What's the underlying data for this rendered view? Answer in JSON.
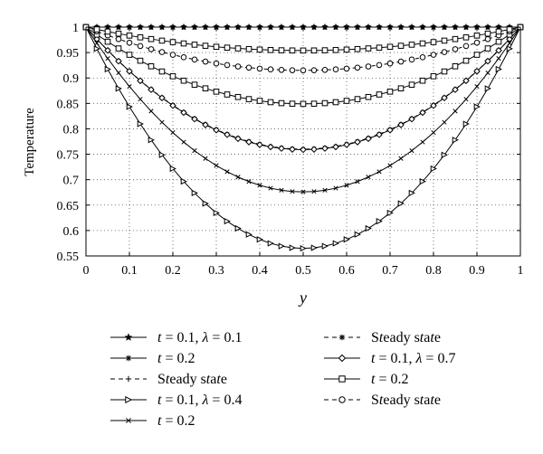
{
  "chart_data": {
    "type": "line",
    "xlabel": "y",
    "ylabel": "Temperature",
    "xlim": [
      0,
      1
    ],
    "ylim": [
      0.55,
      1.0
    ],
    "x_ticks": [
      "0",
      "0.1",
      "0.2",
      "0.3",
      "0.4",
      "0.5",
      "0.6",
      "0.7",
      "0.8",
      "0.9",
      "1"
    ],
    "y_ticks": [
      "0.55",
      "0.6",
      "0.65",
      "0.7",
      "0.75",
      "0.8",
      "0.85",
      "0.9",
      "0.95",
      "1"
    ],
    "grid": true,
    "legend_position": "bottom",
    "series": [
      {
        "name": "t = 0.1, λ = 0.1",
        "line": "solid",
        "marker": "star",
        "min": 1.0
      },
      {
        "name": "t = 0.2",
        "line": "solid",
        "marker": "asterisk",
        "min": 1.0
      },
      {
        "name": "Steady state",
        "line": "dashed",
        "marker": "plus",
        "min": 1.0
      },
      {
        "name": "t = 0.1, λ = 0.4",
        "line": "solid",
        "marker": "triangle",
        "min": 0.565
      },
      {
        "name": "t = 0.2",
        "line": "solid",
        "marker": "x",
        "min": 0.676
      },
      {
        "name": "Steady state",
        "line": "dashed",
        "marker": "asterisk",
        "min": 0.76
      },
      {
        "name": "t = 0.1, λ = 0.7",
        "line": "solid",
        "marker": "diamond",
        "min": 0.759
      },
      {
        "name": "t = 0.2",
        "line": "solid",
        "marker": "square",
        "min": 0.849
      },
      {
        "name": "Steady state",
        "line": "dashed",
        "marker": "circle",
        "min": 0.915
      }
    ],
    "curve_extra": [
      {
        "line": "solid",
        "marker": "square",
        "min": 0.954
      }
    ]
  }
}
